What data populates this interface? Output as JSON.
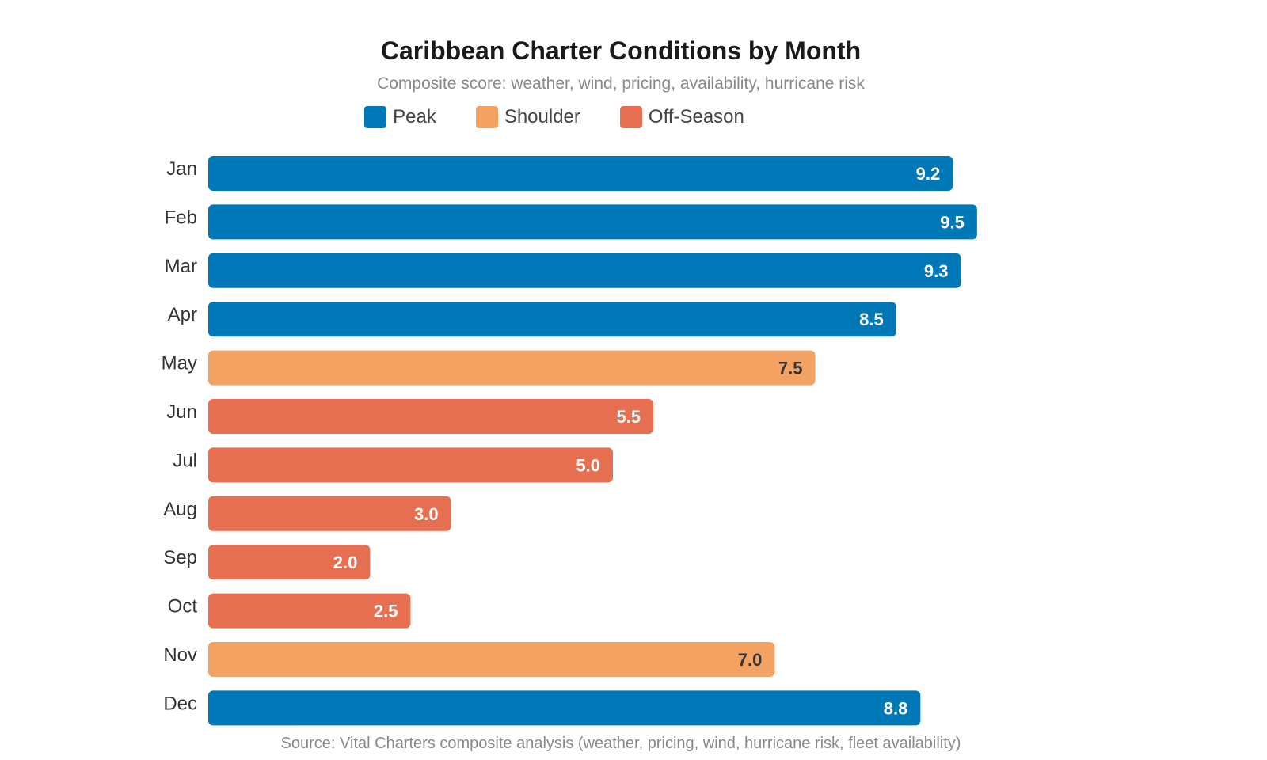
{
  "chart_data": {
    "type": "bar",
    "orientation": "horizontal",
    "title": "Caribbean Charter Conditions by Month",
    "subtitle": "Composite score: weather, wind, pricing, availability, hurricane risk",
    "categories": [
      "Jan",
      "Feb",
      "Mar",
      "Apr",
      "May",
      "Jun",
      "Jul",
      "Aug",
      "Sep",
      "Oct",
      "Nov",
      "Dec"
    ],
    "values": [
      9.2,
      9.5,
      9.3,
      8.5,
      7.5,
      5.5,
      5.0,
      3.0,
      2.0,
      2.5,
      7.0,
      8.8
    ],
    "value_labels": [
      "9.2",
      "9.5",
      "9.3",
      "8.5",
      "7.5",
      "5.5",
      "5.0",
      "3.0",
      "2.0",
      "2.5",
      "7.0",
      "8.8"
    ],
    "season": [
      "Peak",
      "Peak",
      "Peak",
      "Peak",
      "Shoulder",
      "Off-Season",
      "Off-Season",
      "Off-Season",
      "Off-Season",
      "Off-Season",
      "Shoulder",
      "Peak"
    ],
    "legend": [
      {
        "name": "Peak",
        "color": "#0077b6"
      },
      {
        "name": "Shoulder",
        "color": "#f4a261"
      },
      {
        "name": "Off-Season",
        "color": "#e76f51"
      }
    ],
    "xlim": [
      0,
      10
    ],
    "grid": false,
    "legend_position": "top",
    "source": "Source: Vital Charters composite analysis (weather, pricing, wind, hurricane risk, fleet availability)"
  }
}
